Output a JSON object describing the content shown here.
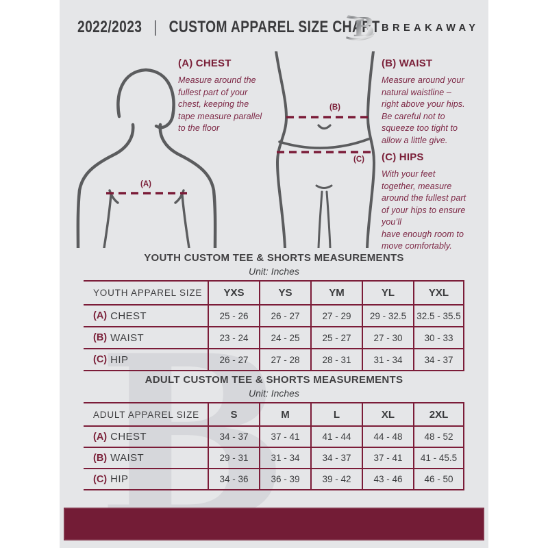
{
  "header": {
    "year": "2022/2023",
    "separator": "|",
    "title": "CUSTOM APPAREL SIZE CHART",
    "brand": "BREAKAWAY",
    "logo_icon": "breakaway-b-logo-icon",
    "watermark_letter": "B"
  },
  "colors": {
    "page_bg": "#e5e6e8",
    "maroon": "#731c36",
    "table_border": "#7b1c38",
    "guide_text": "#7c2644",
    "dark_text": "#3b3c3e",
    "figure_stroke": "#5b5c5e"
  },
  "guides": {
    "chest": {
      "heading": "(A) CHEST",
      "marker": "(A)",
      "description": "Measure around the\nfullest part of your\nchest, keeping the\ntape measure parallel\nto the floor"
    },
    "waist": {
      "heading": "(B) WAIST",
      "marker": "(B)",
      "description": "Measure around your\nnatural waistline –\nright above your hips.\nBe careful not to\nsqueeze too tight to\nallow a little give."
    },
    "hips": {
      "heading": "(C) HIPS",
      "marker": "(C)",
      "description": "With your feet\ntogether, measure\naround the fullest part\nof your hips to ensure\nyou’ll\nhave enough room to\nmove comfortably."
    }
  },
  "youth_table": {
    "title": "YOUTH CUSTOM TEE & SHORTS MEASUREMENTS",
    "unit": "Unit: Inches",
    "size_header": "YOUTH APPAREL SIZE",
    "columns": [
      "YXS",
      "YS",
      "YM",
      "YL",
      "YXL"
    ],
    "rows": [
      {
        "marker": "(A)",
        "label": "CHEST",
        "values": [
          "25 - 26",
          "26 - 27",
          "27 - 29",
          "29 - 32.5",
          "32.5 - 35.5"
        ]
      },
      {
        "marker": "(B)",
        "label": "WAIST",
        "values": [
          "23 - 24",
          "24 - 25",
          "25 - 27",
          "27 - 30",
          "30 - 33"
        ]
      },
      {
        "marker": "(C)",
        "label": "HIP",
        "values": [
          "26 - 27",
          "27 - 28",
          "28 - 31",
          "31 - 34",
          "34 - 37"
        ]
      }
    ]
  },
  "adult_table": {
    "title": "ADULT CUSTOM TEE & SHORTS MEASUREMENTS",
    "unit": "Unit: Inches",
    "size_header": "ADULT APPAREL SIZE",
    "columns": [
      "S",
      "M",
      "L",
      "XL",
      "2XL"
    ],
    "rows": [
      {
        "marker": "(A)",
        "label": "CHEST",
        "values": [
          "34 - 37",
          "37 - 41",
          "41 - 44",
          "44 - 48",
          "48 - 52"
        ]
      },
      {
        "marker": "(B)",
        "label": "WAIST",
        "values": [
          "29 - 31",
          "31 - 34",
          "34 - 37",
          "37 - 41",
          "41 - 45.5"
        ]
      },
      {
        "marker": "(C)",
        "label": "HIP",
        "values": [
          "34 - 36",
          "36 - 39",
          "39 - 42",
          "43 - 46",
          "46 - 50"
        ]
      }
    ]
  }
}
